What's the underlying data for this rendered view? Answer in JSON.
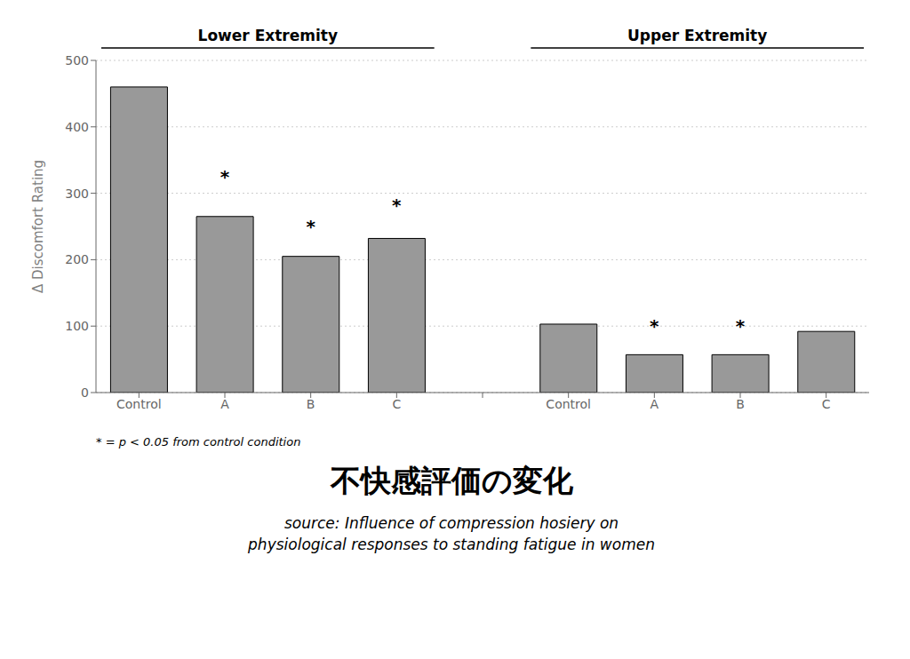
{
  "chart_data": {
    "type": "bar",
    "title": "不快感評価の変化",
    "categories": [
      "Control",
      "A",
      "B",
      "C",
      null,
      "Control",
      "A",
      "B",
      "C"
    ],
    "values": [
      460,
      265,
      205,
      232,
      null,
      103,
      57,
      57,
      92
    ],
    "color": "#999999",
    "ylabel": "Δ Discomfort Rating",
    "ylim": [
      0,
      500
    ],
    "yticks": [
      0,
      100,
      200,
      300,
      400,
      500
    ],
    "grid": true,
    "groups": [
      {
        "label": "Lower Extremity",
        "from": 0,
        "to": 3
      },
      {
        "label": "Upper Extremity",
        "from": 5,
        "to": 8
      }
    ],
    "annotations": [
      {
        "text": "*",
        "index": 1,
        "y": 325
      },
      {
        "text": "*",
        "index": 2,
        "y": 250
      },
      {
        "text": "*",
        "index": 3,
        "y": 282
      },
      {
        "text": "*",
        "index": 6,
        "y": 100
      },
      {
        "text": "*",
        "index": 7,
        "y": 100
      }
    ],
    "footnote": "* = p < 0.05 from control condition",
    "source": [
      "source: Influence of compression hosiery on",
      "physiological responses to standing fatigue in women"
    ]
  }
}
